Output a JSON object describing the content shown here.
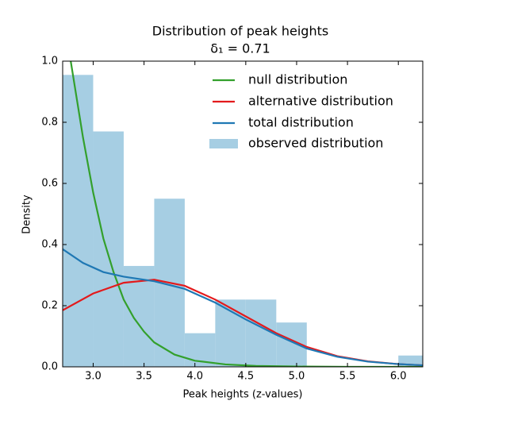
{
  "chart_data": {
    "type": "histogram",
    "title": "Distribution of peak heights",
    "subtitle": "δ₁ = 0.71",
    "xlabel": "Peak heights (z-values)",
    "ylabel": "Density",
    "xlim": [
      2.7,
      6.24
    ],
    "ylim": [
      0,
      1
    ],
    "xticks": [
      {
        "value": 3,
        "label": "3.0"
      },
      3.5,
      {
        "value": 4,
        "label": "4.0"
      },
      4.5,
      {
        "value": 5,
        "label": "5.0"
      },
      5.5,
      {
        "value": 6,
        "label": "6.0"
      }
    ],
    "yticks": [
      {
        "value": 0,
        "label": "0.0"
      },
      0.2,
      0.4,
      0.6,
      0.8,
      {
        "value": 1,
        "label": "1.0"
      }
    ],
    "legend": "upper right",
    "histogram": {
      "name": "observed distribution",
      "color": "#a6cee3",
      "bins": [
        2.7,
        3.0,
        3.3,
        3.6,
        3.9,
        4.2,
        4.5,
        4.8,
        5.1,
        5.4,
        5.7,
        6.0,
        6.3
      ],
      "counts": [
        0.955,
        0.77,
        0.33,
        0.55,
        0.11,
        0.22,
        0.22,
        0.145,
        0,
        0,
        0,
        0.037
      ]
    },
    "series": [
      {
        "name": "null distribution",
        "color": "#33a02c",
        "x": [
          2.76,
          2.9,
          3.0,
          3.1,
          3.2,
          3.3,
          3.4,
          3.5,
          3.6,
          3.8,
          4.0,
          4.3,
          4.6,
          5.0,
          5.5,
          6.24
        ],
        "values": [
          1.04,
          0.75,
          0.57,
          0.42,
          0.31,
          0.22,
          0.16,
          0.115,
          0.08,
          0.04,
          0.02,
          0.008,
          0.003,
          0.001,
          0,
          0
        ]
      },
      {
        "name": "alternative distribution",
        "color": "#e31a1c",
        "x": [
          2.7,
          3.0,
          3.3,
          3.6,
          3.9,
          4.2,
          4.5,
          4.8,
          5.1,
          5.4,
          5.7,
          6.0,
          6.24
        ],
        "values": [
          0.185,
          0.24,
          0.275,
          0.285,
          0.265,
          0.22,
          0.165,
          0.11,
          0.065,
          0.035,
          0.018,
          0.009,
          0.005
        ]
      },
      {
        "name": "total distribution",
        "color": "#1f78b4",
        "x": [
          2.7,
          2.9,
          3.1,
          3.3,
          3.6,
          3.9,
          4.2,
          4.5,
          4.8,
          5.1,
          5.4,
          5.7,
          6.0,
          6.24
        ],
        "values": [
          0.385,
          0.34,
          0.31,
          0.295,
          0.28,
          0.255,
          0.21,
          0.155,
          0.105,
          0.06,
          0.033,
          0.017,
          0.009,
          0.005
        ]
      }
    ]
  }
}
